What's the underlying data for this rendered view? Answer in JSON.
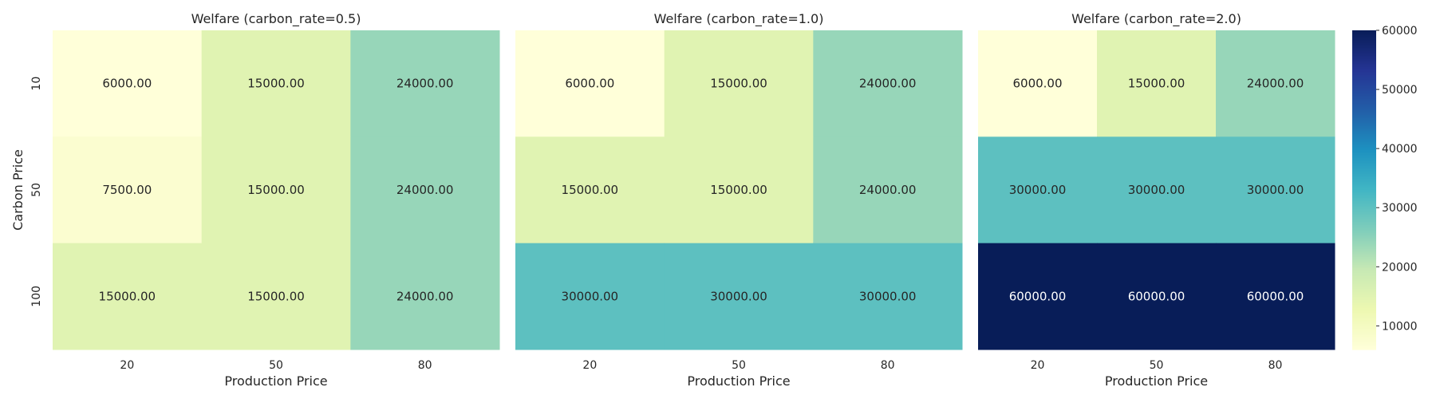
{
  "chart_data": [
    {
      "type": "heatmap",
      "title": "Welfare (carbon_rate=0.5)",
      "xlabel": "Production Price",
      "ylabel": "Carbon Price",
      "x_ticks": [
        "20",
        "50",
        "80"
      ],
      "y_ticks": [
        "10",
        "50",
        "100"
      ],
      "values": [
        [
          6000,
          15000,
          24000
        ],
        [
          7500,
          15000,
          24000
        ],
        [
          15000,
          15000,
          24000
        ]
      ],
      "cell_labels": [
        [
          "6000.00",
          "15000.00",
          "24000.00"
        ],
        [
          "7500.00",
          "15000.00",
          "24000.00"
        ],
        [
          "15000.00",
          "15000.00",
          "24000.00"
        ]
      ]
    },
    {
      "type": "heatmap",
      "title": "Welfare (carbon_rate=1.0)",
      "xlabel": "Production Price",
      "ylabel": "",
      "x_ticks": [
        "20",
        "50",
        "80"
      ],
      "y_ticks": [],
      "values": [
        [
          6000,
          15000,
          24000
        ],
        [
          15000,
          15000,
          24000
        ],
        [
          30000,
          30000,
          30000
        ]
      ],
      "cell_labels": [
        [
          "6000.00",
          "15000.00",
          "24000.00"
        ],
        [
          "15000.00",
          "15000.00",
          "24000.00"
        ],
        [
          "30000.00",
          "30000.00",
          "30000.00"
        ]
      ]
    },
    {
      "type": "heatmap",
      "title": "Welfare (carbon_rate=2.0)",
      "xlabel": "Production Price",
      "ylabel": "",
      "x_ticks": [
        "20",
        "50",
        "80"
      ],
      "y_ticks": [],
      "values": [
        [
          6000,
          15000,
          24000
        ],
        [
          30000,
          30000,
          30000
        ],
        [
          60000,
          60000,
          60000
        ]
      ],
      "cell_labels": [
        [
          "6000.00",
          "15000.00",
          "24000.00"
        ],
        [
          "30000.00",
          "30000.00",
          "30000.00"
        ],
        [
          "60000.00",
          "60000.00",
          "60000.00"
        ]
      ]
    }
  ],
  "colorbar": {
    "colormap": "YlGnBu",
    "range": [
      6000,
      60000
    ],
    "ticks": [
      10000,
      20000,
      30000,
      40000,
      50000,
      60000
    ],
    "tick_labels": [
      "10000",
      "20000",
      "30000",
      "40000",
      "50000",
      "60000"
    ]
  }
}
